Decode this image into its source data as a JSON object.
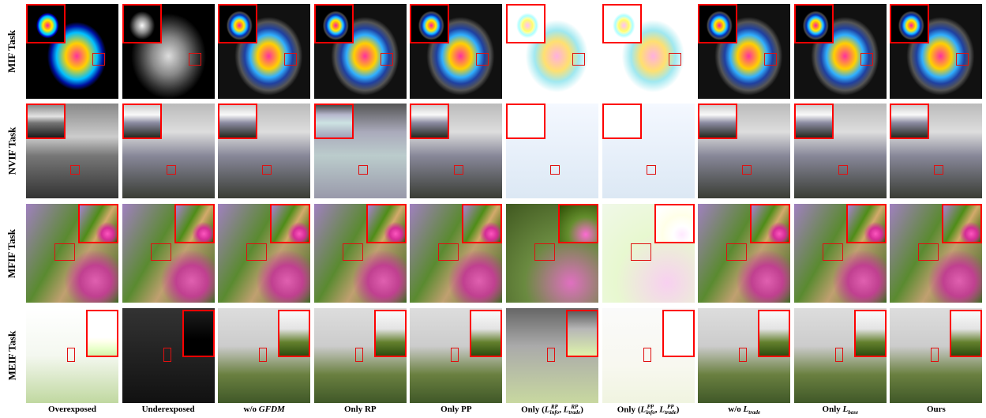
{
  "rows": [
    "MIF Task",
    "NVIF Task",
    "MFIF Task",
    "MEIF Task"
  ],
  "columns": [
    [
      {
        "text": "Overexposed"
      }
    ],
    [
      {
        "text": "Underexposed"
      }
    ],
    [
      {
        "text": "w/o "
      },
      {
        "text": "GFDM",
        "italic": true
      }
    ],
    [
      {
        "text": "Only RP"
      }
    ],
    [
      {
        "text": "Only PP"
      }
    ],
    [
      {
        "text": "Only ("
      },
      {
        "text": "L",
        "italic": true,
        "sub": "info",
        "sup": "RP"
      },
      {
        "text": ", "
      },
      {
        "text": "L",
        "italic": true,
        "sub": "trade",
        "sup": "RP"
      },
      {
        "text": ")"
      }
    ],
    [
      {
        "text": "Only ("
      },
      {
        "text": "L",
        "italic": true,
        "sub": "info",
        "sup": "PP"
      },
      {
        "text": ", "
      },
      {
        "text": "L",
        "italic": true,
        "sub": "trade",
        "sup": "PP"
      },
      {
        "text": ")"
      }
    ],
    [
      {
        "text": "w/o "
      },
      {
        "text": "L",
        "italic": true,
        "sub": "trade"
      }
    ],
    [
      {
        "text": "Only "
      },
      {
        "text": "L",
        "italic": true,
        "sub": "base"
      }
    ],
    [
      {
        "text": "Ours"
      }
    ]
  ]
}
